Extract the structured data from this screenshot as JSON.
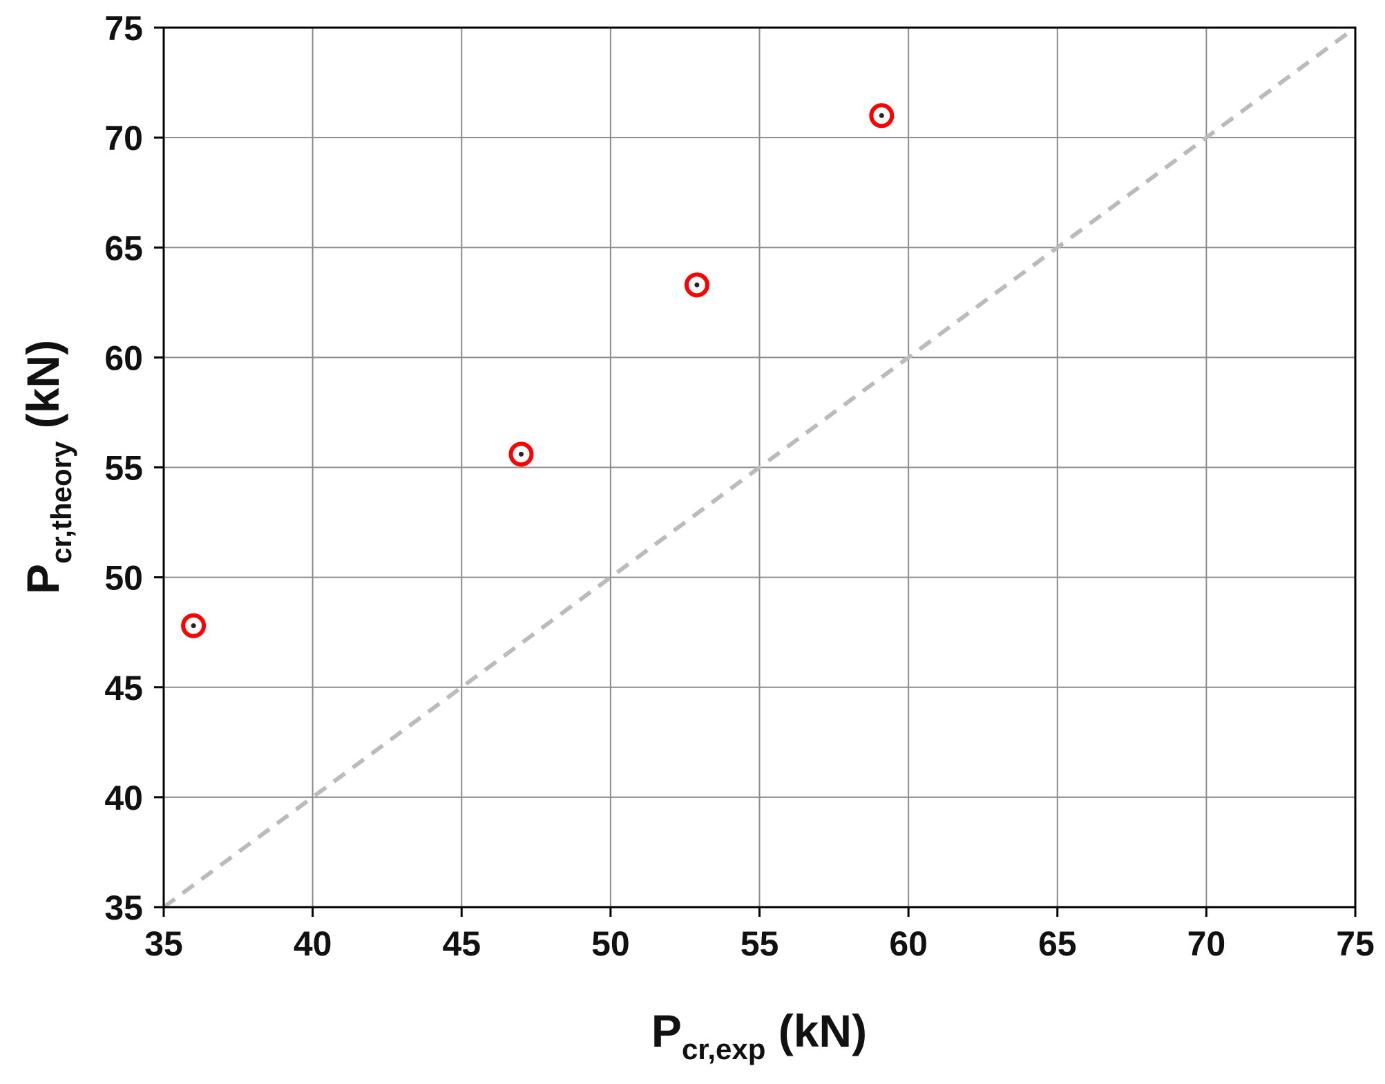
{
  "chart_data": {
    "type": "scatter",
    "title": "",
    "xlabel": {
      "main": "P",
      "sub": "cr,exp",
      "unit": " (kN)"
    },
    "ylabel": {
      "main": "P",
      "sub": "cr,theory",
      "unit": " (kN)"
    },
    "xlim": [
      35,
      75
    ],
    "ylim": [
      35,
      75
    ],
    "xticks": [
      35,
      40,
      45,
      50,
      55,
      60,
      65,
      70,
      75
    ],
    "yticks": [
      35,
      40,
      45,
      50,
      55,
      60,
      65,
      70,
      75
    ],
    "grid": true,
    "series": [
      {
        "marker": "circle-dot",
        "color": "#ff0000",
        "x": [
          36.0,
          47.0,
          52.9,
          59.1
        ],
        "y": [
          47.8,
          55.6,
          63.3,
          71.0
        ]
      }
    ],
    "reference_line": {
      "x": [
        35,
        75
      ],
      "y": [
        35,
        75
      ],
      "style": "dashed",
      "color": "#bbbbbb"
    }
  }
}
